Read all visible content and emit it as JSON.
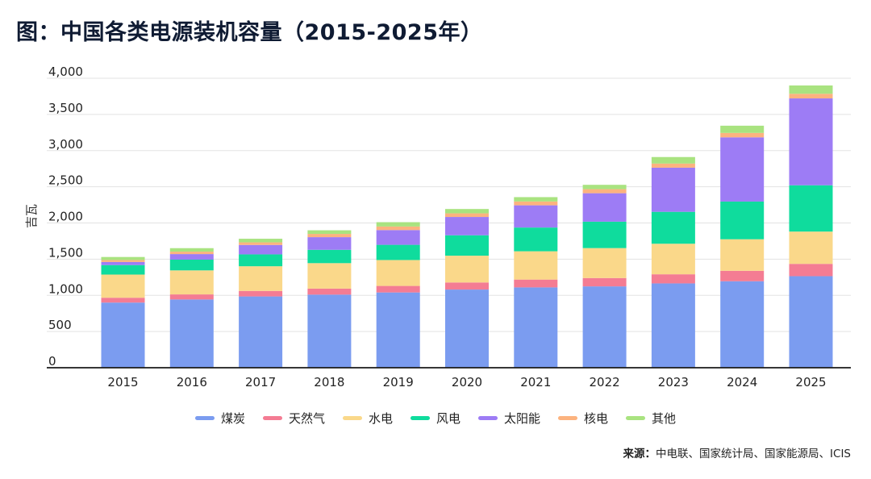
{
  "title": "图：中国各类电源装机容量（2015-2025年）",
  "source": {
    "label": "来源：",
    "text": "中电联、国家统计局、国家能源局、ICIS"
  },
  "chart_data": {
    "type": "bar",
    "stacked": true,
    "ylabel": "吉瓦",
    "ylim": [
      0,
      4000
    ],
    "yticks": [
      0,
      500,
      1000,
      1500,
      2000,
      2500,
      3000,
      3500,
      4000
    ],
    "ytick_labels": [
      "0",
      "500",
      "1,000",
      "1,500",
      "2,000",
      "2,500",
      "3,000",
      "3,500",
      "4,000"
    ],
    "grid": true,
    "legend_position": "bottom",
    "categories": [
      "2015",
      "2016",
      "2017",
      "2018",
      "2019",
      "2020",
      "2021",
      "2022",
      "2023",
      "2024",
      "2025"
    ],
    "series": [
      {
        "name": "煤炭",
        "color": "#7b9cf0",
        "values": [
          900,
          943,
          985,
          1010,
          1040,
          1080,
          1110,
          1124,
          1165,
          1195,
          1265
        ]
      },
      {
        "name": "天然气",
        "color": "#f47c93",
        "values": [
          67,
          70,
          76,
          83,
          90,
          98,
          108,
          115,
          126,
          144,
          170
        ]
      },
      {
        "name": "水电",
        "color": "#fad88a",
        "values": [
          320,
          332,
          341,
          352,
          358,
          370,
          391,
          414,
          422,
          436,
          446
        ]
      },
      {
        "name": "风电",
        "color": "#0fdc9d",
        "values": [
          131,
          148,
          164,
          184,
          210,
          282,
          328,
          365,
          441,
          521,
          640
        ]
      },
      {
        "name": "太阳能",
        "color": "#9d7cf5",
        "values": [
          43,
          77,
          130,
          175,
          204,
          253,
          307,
          393,
          610,
          887,
          1200
        ]
      },
      {
        "name": "核电",
        "color": "#fcb37f",
        "values": [
          27,
          34,
          36,
          45,
          49,
          50,
          53,
          56,
          57,
          61,
          64
        ]
      },
      {
        "name": "其他",
        "color": "#a9e380",
        "values": [
          42,
          48,
          50,
          50,
          60,
          60,
          60,
          60,
          90,
          100,
          115
        ]
      }
    ]
  }
}
